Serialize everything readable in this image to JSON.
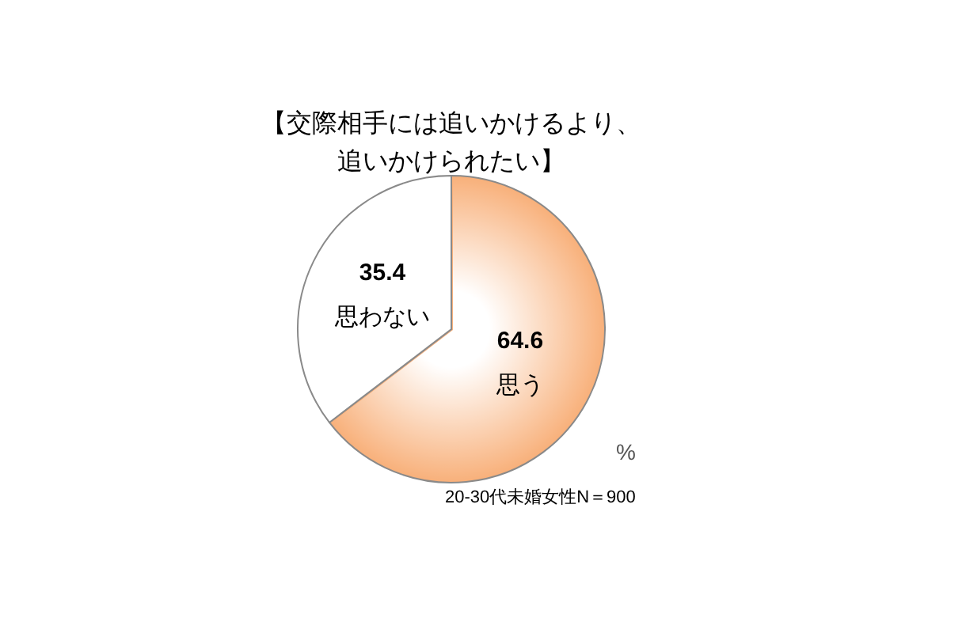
{
  "chart_data": {
    "type": "pie",
    "title": "【交際相手には追いかけるより、追いかけられたい】",
    "categories": [
      "思う",
      "思わない"
    ],
    "values": [
      64.6,
      35.4
    ],
    "colors": [
      "#f8b07a",
      "#ffffff"
    ],
    "data_labels": true,
    "annotations": [
      "%",
      "20-30代未婚女性N＝900"
    ]
  }
}
